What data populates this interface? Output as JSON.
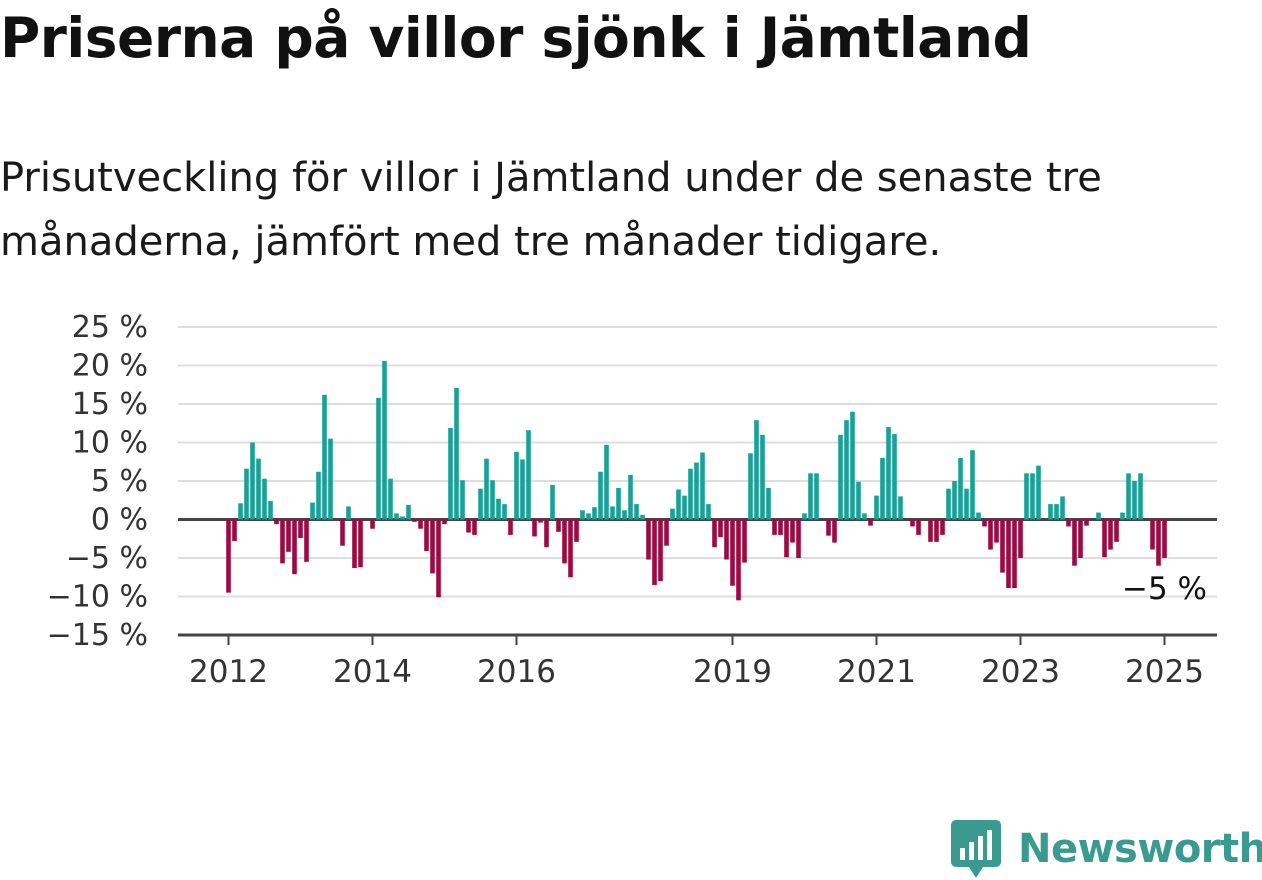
{
  "title": "Priserna på villor sjönk i Jämtland",
  "subtitle": "Prisutveckling för villor i Jämtland under de senaste tre månaderna, jämfört med tre månader tidigare.",
  "brand": {
    "name": "Newsworthy",
    "icon": "newsworthy-logo-icon",
    "color": "#3a9a8f"
  },
  "chart_data": {
    "type": "bar",
    "ylim": [
      -15,
      25
    ],
    "yticks": [
      25,
      20,
      15,
      10,
      5,
      0,
      -5,
      -10,
      -15
    ],
    "ytick_labels": [
      "25 %",
      "20 %",
      "15 %",
      "10 %",
      "5 %",
      "0 %",
      "−5 %",
      "−10 %",
      "−15 %"
    ],
    "xtick_labels": [
      "2012",
      "2014",
      "2016",
      "2019",
      "2021",
      "2023",
      "2025"
    ],
    "xtick_months": [
      0,
      24,
      48,
      84,
      108,
      132,
      156
    ],
    "start": "2012-01",
    "end": "2025-03",
    "grid": true,
    "positive_color": "#1aa197",
    "negative_color": "#9c0a43",
    "end_label": "−5 %",
    "values": [
      -9.5,
      -2.8,
      2.1,
      6.6,
      10.0,
      7.9,
      5.3,
      2.4,
      -0.6,
      -5.7,
      -4.2,
      -7.1,
      -2.4,
      -5.5,
      2.2,
      6.2,
      16.2,
      10.5,
      0,
      -3.4,
      1.7,
      -6.3,
      -6.2,
      0,
      -1.2,
      15.8,
      20.6,
      5.3,
      0.8,
      0.4,
      1.9,
      -0.3,
      -1.2,
      -4.1,
      -7.0,
      -10.1,
      -0.6,
      11.9,
      17.1,
      5.1,
      -1.7,
      -2.0,
      4.0,
      7.9,
      5.1,
      2.7,
      2.0,
      -2.0,
      8.8,
      7.8,
      11.6,
      -2.2,
      -0.4,
      -3.6,
      4.5,
      -1.6,
      -5.7,
      -7.5,
      -2.9,
      1.2,
      0.8,
      1.6,
      6.2,
      9.7,
      1.7,
      4.1,
      1.2,
      5.8,
      2.0,
      0.6,
      -5.2,
      -8.5,
      -8.0,
      -3.4,
      1.4,
      3.9,
      3.1,
      6.6,
      7.4,
      8.7,
      2.0,
      -3.6,
      -2.3,
      -5.2,
      -8.6,
      -10.5,
      -5.6,
      8.6,
      12.9,
      11.0,
      4.1,
      -2.0,
      -2.0,
      -4.9,
      -3.0,
      -5.0,
      0.8,
      6.0,
      6.0,
      0,
      -2.1,
      -3.0,
      11.0,
      12.9,
      14.0,
      4.9,
      0.8,
      -0.8,
      3.1,
      8.0,
      12.0,
      11.1,
      3.0,
      0,
      -0.9,
      -2.0,
      0,
      -2.9,
      -2.9,
      -2.0,
      4.0,
      5.0,
      8.0,
      4.0,
      9.0,
      0.9,
      -0.9,
      -3.9,
      -3.0,
      -6.9,
      -8.9,
      -8.9,
      -5.0,
      6.0,
      6.0,
      7.0,
      0,
      2.0,
      2.0,
      3.0,
      -0.9,
      -6.0,
      -5.0,
      -0.8,
      0,
      0.9,
      -4.9,
      -3.9,
      -2.9,
      0.9,
      6.0,
      5.0,
      6.0,
      0,
      -3.9,
      -6.0,
      -5.0
    ]
  }
}
